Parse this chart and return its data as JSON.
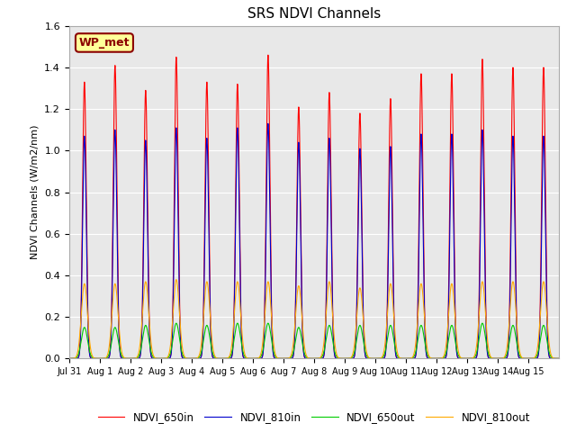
{
  "title": "SRS NDVI Channels",
  "ylabel": "NDVI Channels (W/m2/nm)",
  "xlabel": "",
  "ylim": [
    0,
    1.6
  ],
  "yticks": [
    0.0,
    0.2,
    0.4,
    0.6,
    0.8,
    1.0,
    1.2,
    1.4,
    1.6
  ],
  "bg_color": "#e8e8e8",
  "line_colors": {
    "NDVI_650in": "#ff0000",
    "NDVI_810in": "#0000cc",
    "NDVI_650out": "#00cc00",
    "NDVI_810out": "#ffaa00"
  },
  "annotation_text": "WP_met",
  "annotation_bg": "#ffff99",
  "annotation_border": "#8b0000",
  "peaks_650in": [
    1.33,
    1.41,
    1.29,
    1.45,
    1.33,
    1.32,
    1.46,
    1.21,
    1.28,
    1.18,
    1.25,
    1.37,
    1.37,
    1.44,
    1.4,
    1.4
  ],
  "peaks_810in": [
    1.07,
    1.1,
    1.05,
    1.11,
    1.06,
    1.11,
    1.13,
    1.04,
    1.06,
    1.01,
    1.02,
    1.08,
    1.08,
    1.1,
    1.07,
    1.07
  ],
  "peaks_650out": [
    0.15,
    0.15,
    0.16,
    0.17,
    0.16,
    0.17,
    0.17,
    0.15,
    0.16,
    0.16,
    0.16,
    0.16,
    0.16,
    0.17,
    0.16,
    0.16
  ],
  "peaks_810out": [
    0.36,
    0.36,
    0.37,
    0.38,
    0.37,
    0.37,
    0.37,
    0.35,
    0.37,
    0.34,
    0.36,
    0.36,
    0.36,
    0.37,
    0.37,
    0.37
  ],
  "n_days": 16,
  "pts_per_day": 200,
  "x_tick_labels": [
    "Jul 31",
    "Aug 1",
    "Aug 2",
    "Aug 3",
    "Aug 4",
    "Aug 5",
    "Aug 6",
    "Aug 7",
    "Aug 8",
    "Aug 9",
    "Aug 10",
    "Aug 11",
    "Aug 12",
    "Aug 13",
    "Aug 14",
    "Aug 15"
  ],
  "figsize": [
    6.4,
    4.8
  ],
  "dpi": 100
}
